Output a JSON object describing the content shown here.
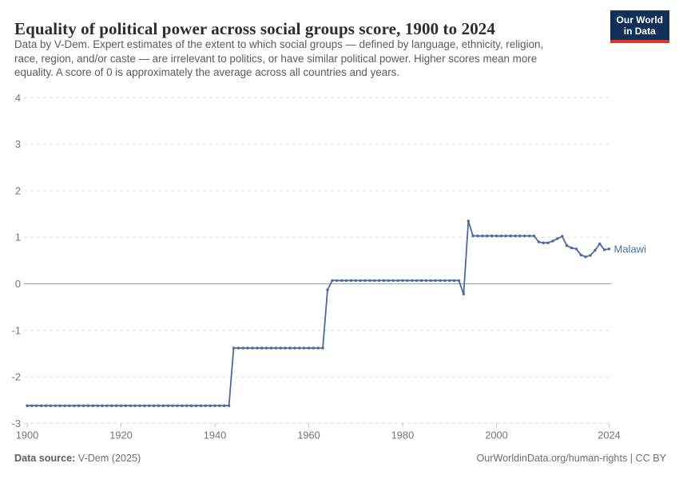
{
  "header": {
    "title": "Equality of political power across social groups score, 1900 to 2024",
    "subtitle_lines": [
      "Data by V-Dem. Expert estimates of the extent to which social groups — defined by language, ethnicity, religion,",
      "race, region, and/or caste — are irrelevant to politics, or have similar political power. Higher scores mean more",
      "equality. A score of 0 is approximately the average across all countries and years."
    ],
    "logo": {
      "line1": "Our World",
      "line2": "in Data"
    }
  },
  "footer": {
    "source_label": "Data source:",
    "source_value": "V-Dem (2025)",
    "credit": "OurWorldinData.org/human-rights | CC BY"
  },
  "colors": {
    "series_blue": "#4c6a9c",
    "gridline": "#dcdcdc",
    "zero_line": "#a0a0a0",
    "axis_text": "#737373",
    "tick_mark": "#c4c4c4",
    "logo_navy": "#122f57",
    "logo_red": "#e0342c"
  },
  "chart_data": {
    "type": "line",
    "title": "Equality of political power across social groups score, 1900 to 2024",
    "xlabel": "",
    "ylabel": "",
    "x": {
      "range": [
        1900,
        2024
      ],
      "ticks": [
        1900,
        1920,
        1940,
        1960,
        1980,
        2000,
        2024
      ]
    },
    "y": {
      "range": [
        -3,
        4
      ],
      "ticks": [
        4,
        3,
        2,
        1,
        0,
        -1,
        -2,
        -3
      ],
      "gridlines": "dashed",
      "zero_line": "solid"
    },
    "legend_position": "end-of-line",
    "series": [
      {
        "name": "Malawi",
        "color": "#4c6a9c",
        "start_year": 1900,
        "end_year": 2024,
        "values": [
          -2.62,
          -2.62,
          -2.62,
          -2.62,
          -2.62,
          -2.62,
          -2.62,
          -2.62,
          -2.62,
          -2.62,
          -2.62,
          -2.62,
          -2.62,
          -2.62,
          -2.62,
          -2.62,
          -2.62,
          -2.62,
          -2.62,
          -2.62,
          -2.62,
          -2.62,
          -2.62,
          -2.62,
          -2.62,
          -2.62,
          -2.62,
          -2.62,
          -2.62,
          -2.62,
          -2.62,
          -2.62,
          -2.62,
          -2.62,
          -2.62,
          -2.62,
          -2.62,
          -2.62,
          -2.62,
          -2.62,
          -2.62,
          -2.62,
          -2.62,
          -2.62,
          -1.38,
          -1.38,
          -1.38,
          -1.38,
          -1.38,
          -1.38,
          -1.38,
          -1.38,
          -1.38,
          -1.38,
          -1.38,
          -1.38,
          -1.38,
          -1.38,
          -1.38,
          -1.38,
          -1.38,
          -1.38,
          -1.38,
          -1.38,
          -0.13,
          0.07,
          0.07,
          0.07,
          0.07,
          0.07,
          0.07,
          0.07,
          0.07,
          0.07,
          0.07,
          0.07,
          0.07,
          0.07,
          0.07,
          0.07,
          0.07,
          0.07,
          0.07,
          0.07,
          0.07,
          0.07,
          0.07,
          0.07,
          0.07,
          0.07,
          0.07,
          0.07,
          0.07,
          -0.22,
          1.35,
          1.03,
          1.03,
          1.03,
          1.03,
          1.03,
          1.03,
          1.03,
          1.03,
          1.03,
          1.03,
          1.03,
          1.03,
          1.03,
          1.03,
          0.9,
          0.88,
          0.88,
          0.92,
          0.97,
          1.02,
          0.82,
          0.77,
          0.75,
          0.62,
          0.58,
          0.61,
          0.72,
          0.86,
          0.73,
          0.75
        ]
      }
    ]
  }
}
